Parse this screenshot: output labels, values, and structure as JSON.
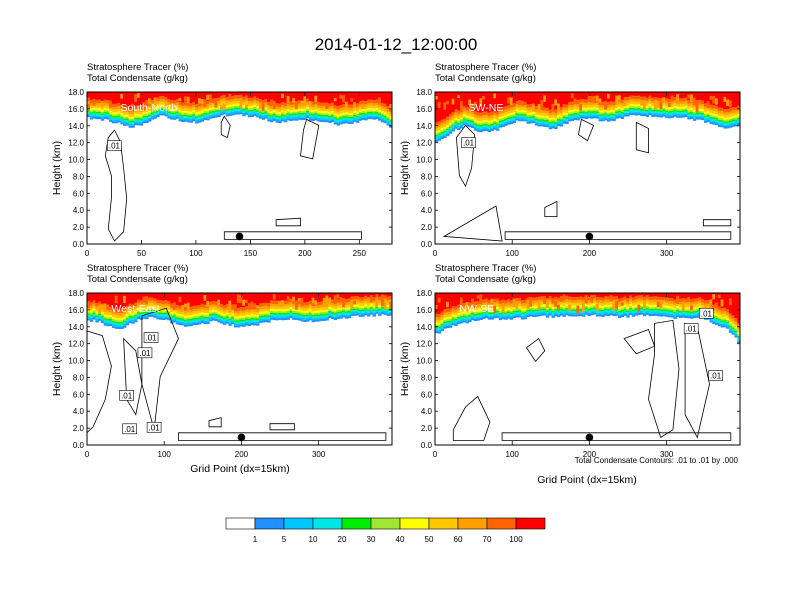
{
  "figure": {
    "title": "2014-01-12_12:00:00",
    "x_axis_title": "Grid Point (dx=15km)",
    "contour_note": "Total Condensate Contours: .01 to .01 by .000"
  },
  "colors": {
    "background": "#ffffff",
    "marker": "#000000"
  },
  "chart_data": [
    {
      "type": "heatmap",
      "panel": "South-North",
      "title_lines": [
        "Stratosphere Tracer   (%)",
        "Total Condensate   (g/kg)"
      ],
      "ylabel": "Height (km)",
      "xlim": [
        0,
        280
      ],
      "ylim": [
        0,
        18
      ],
      "xticks": [
        "0",
        "50",
        "100",
        "150",
        "200",
        "250"
      ],
      "xtick_values": [
        0,
        50,
        100,
        150,
        200,
        250
      ],
      "yticks": [
        "0.0",
        "2.0",
        "4.0",
        "6.0",
        "8.0",
        "10.0",
        "12.0",
        "14.0",
        "16.0",
        "18.0"
      ],
      "marker_x": 140,
      "contour_labels": [
        ".01"
      ],
      "tropopause_km": [
        14.9,
        14.8,
        14.6,
        14.2,
        13.8,
        14.1,
        14.6,
        15.1,
        14.9,
        14.6,
        14.4,
        14.5,
        14.9,
        15.2,
        15.3,
        15.2,
        15.0,
        14.7,
        14.4,
        14.5,
        14.6,
        14.8,
        14.7,
        14.4,
        14.1,
        14.2,
        14.6,
        14.9,
        14.6,
        13.8
      ]
    },
    {
      "type": "heatmap",
      "panel": "SW-NE",
      "title_lines": [
        "Stratosphere Tracer   (%)",
        "Total Condensate   (g/kg)"
      ],
      "ylabel": "Height (km)",
      "xlim": [
        0,
        395
      ],
      "ylim": [
        0,
        18
      ],
      "xticks": [
        "0",
        "100",
        "200",
        "300"
      ],
      "xtick_values": [
        0,
        100,
        200,
        300
      ],
      "yticks": [
        "0.0",
        "2.0",
        "4.0",
        "6.0",
        "8.0",
        "10.0",
        "12.0",
        "14.0",
        "16.0",
        "18.0"
      ],
      "marker_x": 200,
      "contour_labels": [
        ".01"
      ],
      "tropopause_km": [
        12.2,
        12.8,
        13.6,
        14.1,
        13.4,
        13.2,
        13.6,
        14.2,
        14.6,
        14.3,
        13.9,
        13.6,
        14.0,
        14.6,
        14.9,
        14.8,
        14.6,
        14.7,
        15.0,
        15.2,
        15.2,
        15.1,
        15.0,
        15.0,
        14.9,
        14.7,
        14.4,
        13.9,
        13.6,
        14.0
      ]
    },
    {
      "type": "heatmap",
      "panel": "West-East",
      "title_lines": [
        "Stratosphere Tracer   (%)",
        "Total Condensate   (g/kg)"
      ],
      "ylabel": "Height (km)",
      "xlim": [
        0,
        395
      ],
      "ylim": [
        0,
        18
      ],
      "xticks": [
        "0",
        "100",
        "200",
        "300"
      ],
      "xtick_values": [
        0,
        100,
        200,
        300
      ],
      "yticks": [
        "0.0",
        "2.0",
        "4.0",
        "6.0",
        "8.0",
        "10.0",
        "12.0",
        "14.0",
        "16.0",
        "18.0"
      ],
      "marker_x": 200,
      "contour_labels": [
        ".01",
        ".01",
        ".01",
        ".01",
        ".01"
      ],
      "tropopause_km": [
        14.8,
        14.6,
        14.0,
        13.6,
        14.3,
        14.9,
        15.1,
        15.0,
        14.5,
        14.1,
        14.0,
        14.3,
        14.6,
        14.4,
        14.1,
        14.0,
        14.2,
        14.5,
        14.8,
        14.9,
        14.8,
        14.7,
        14.7,
        14.9,
        15.0,
        15.1,
        15.2,
        15.3,
        15.4,
        15.4
      ]
    },
    {
      "type": "heatmap",
      "panel": "NW-SE",
      "title_lines": [
        "Stratosphere Tracer   (%)",
        "Total Condensate   (g/kg)"
      ],
      "ylabel": "Height (km)",
      "xlim": [
        0,
        395
      ],
      "ylim": [
        0,
        18
      ],
      "xticks": [
        "0",
        "100",
        "200",
        "300"
      ],
      "xtick_values": [
        0,
        100,
        200,
        300
      ],
      "yticks": [
        "0.0",
        "2.0",
        "4.0",
        "6.0",
        "8.0",
        "10.0",
        "12.0",
        "14.0",
        "16.0",
        "18.0"
      ],
      "marker_x": 200,
      "contour_labels": [
        ".01",
        ".01",
        ".01"
      ],
      "tropopause_km": [
        13.2,
        13.8,
        14.2,
        14.6,
        14.9,
        15.0,
        14.9,
        14.9,
        15.0,
        15.1,
        15.2,
        15.2,
        15.2,
        15.3,
        15.3,
        15.3,
        15.3,
        15.2,
        15.2,
        15.3,
        15.3,
        15.2,
        15.1,
        15.0,
        15.0,
        15.1,
        14.9,
        14.2,
        13.6,
        12.2
      ]
    }
  ],
  "colorbar": {
    "labels": [
      "1",
      "5",
      "10",
      "20",
      "30",
      "40",
      "50",
      "60",
      "70",
      "100"
    ],
    "colors": [
      "#ffffff",
      "#1e90ff",
      "#00c8ff",
      "#00e6e6",
      "#00d98c",
      "#00ee00",
      "#a0e632",
      "#ffff00",
      "#ffc800",
      "#ffa000",
      "#ff6400",
      "#ff0000"
    ]
  }
}
